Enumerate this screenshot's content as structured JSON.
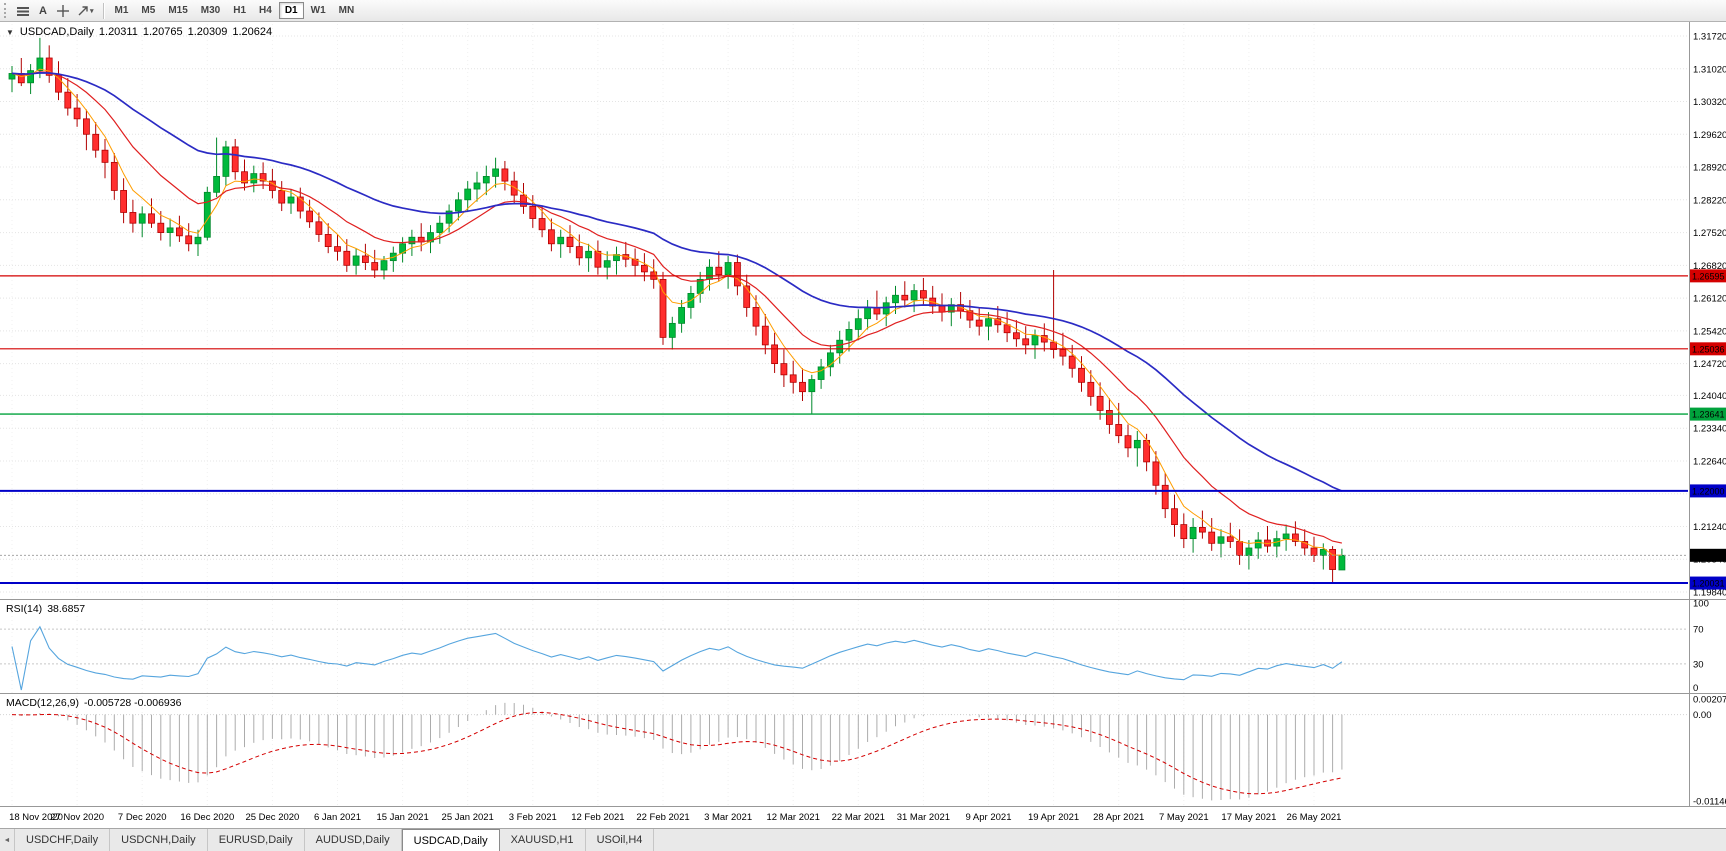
{
  "toolbar": {
    "text_tool_label": "A",
    "timeframes": [
      "M1",
      "M5",
      "M15",
      "M30",
      "H1",
      "H4",
      "D1",
      "W1",
      "MN"
    ],
    "active_timeframe": "D1"
  },
  "icons": {
    "triangle_down": "▼",
    "caret_down": "▾",
    "scroll_left": "◄"
  },
  "colors": {
    "candle_up": "#00B93C",
    "candle_up_border": "#00892A",
    "candle_down": "#FF2E2E",
    "candle_down_border": "#B00000",
    "macd_hist": "#ACACAC",
    "macd_signal": "#D40000",
    "grid": "#E4E4E4"
  },
  "tabs": {
    "items": [
      "USDCHF,Daily",
      "USDCNH,Daily",
      "EURUSD,Daily",
      "AUDUSD,Daily",
      "USDCAD,Daily",
      "XAUUSD,H1",
      "USOil,H4"
    ],
    "active_index": 4
  },
  "chart_data": {
    "type": "candlestick",
    "title": "USDCAD,Daily",
    "current": {
      "open": "1.20311",
      "high": "1.20765",
      "low": "1.20309",
      "close": "1.20624"
    },
    "y_top_price": 1.3172,
    "y_bottom_price": 1.1984,
    "y_axis_labels": [
      "1.31720",
      "1.31020",
      "1.30320",
      "1.29620",
      "1.28920",
      "1.28220",
      "1.27520",
      "1.26820",
      "1.26120",
      "1.25420",
      "1.24720",
      "1.24040",
      "1.23340",
      "1.22640",
      "1.21940",
      "1.21240",
      "1.20540",
      "1.19840"
    ],
    "x_labels": [
      {
        "bar": 0,
        "label": "18 Nov 2020"
      },
      {
        "bar": 7,
        "label": "27 Nov 2020"
      },
      {
        "bar": 14,
        "label": "7 Dec 2020"
      },
      {
        "bar": 21,
        "label": "16 Dec 2020"
      },
      {
        "bar": 28,
        "label": "25 Dec 2020"
      },
      {
        "bar": 35,
        "label": "6 Jan 2021"
      },
      {
        "bar": 42,
        "label": "15 Jan 2021"
      },
      {
        "bar": 49,
        "label": "25 Jan 2021"
      },
      {
        "bar": 56,
        "label": "3 Feb 2021"
      },
      {
        "bar": 63,
        "label": "12 Feb 2021"
      },
      {
        "bar": 70,
        "label": "22 Feb 2021"
      },
      {
        "bar": 77,
        "label": "3 Mar 2021"
      },
      {
        "bar": 84,
        "label": "12 Mar 2021"
      },
      {
        "bar": 91,
        "label": "22 Mar 2021"
      },
      {
        "bar": 98,
        "label": "31 Mar 2021"
      },
      {
        "bar": 105,
        "label": "9 Apr 2021"
      },
      {
        "bar": 112,
        "label": "19 Apr 2021"
      },
      {
        "bar": 119,
        "label": "28 Apr 2021"
      },
      {
        "bar": 126,
        "label": "7 May 2021"
      },
      {
        "bar": 133,
        "label": "17 May 2021"
      },
      {
        "bar": 140,
        "label": "26 May 2021"
      }
    ],
    "hlines": [
      {
        "price": 1.26595,
        "label": "1.26595",
        "color": "#D40000",
        "width": 1.2
      },
      {
        "price": 1.25036,
        "label": "1.25036",
        "color": "#D40000",
        "width": 1.2
      },
      {
        "price": 1.23641,
        "label": "1.23641",
        "color": "#00A23C",
        "width": 1.4
      },
      {
        "price": 1.22,
        "label": "1.22000",
        "color": "#0000C8",
        "width": 2
      },
      {
        "price": 1.20031,
        "label": "1.20031",
        "color": "#0000C8",
        "width": 2
      }
    ],
    "current_price": {
      "value": 1.20624,
      "label": "1.20624",
      "badge_color": "#000000"
    },
    "mas": [
      {
        "period": 5,
        "color": "#FF9E00",
        "width": 1
      },
      {
        "period": 13,
        "color": "#E02020",
        "width": 1.2
      },
      {
        "period": 34,
        "color": "#2B2BC4",
        "width": 1.7
      }
    ],
    "rsi": {
      "label": "RSI(14)",
      "value": "38.6857",
      "period": 14,
      "levels": [
        100,
        70,
        30,
        0
      ],
      "color": "#56A5DE"
    },
    "macd": {
      "label": "MACD(12,26,9)",
      "values": "-0.005728 -0.006936",
      "fast": 12,
      "slow": 26,
      "signal": 9,
      "scale_max": 0.002074,
      "scale_min": -0.011462,
      "max_label": "0.002074",
      "zero_label": "0.00",
      "min_label": "-0.011462"
    },
    "candles": [
      [
        1.308,
        1.3108,
        1.3052,
        1.3092
      ],
      [
        1.3092,
        1.3125,
        1.3065,
        1.3072
      ],
      [
        1.3072,
        1.3112,
        1.3048,
        1.3098
      ],
      [
        1.3098,
        1.3168,
        1.3082,
        1.3125
      ],
      [
        1.3125,
        1.3152,
        1.3072,
        1.3088
      ],
      [
        1.3088,
        1.3118,
        1.3035,
        1.3052
      ],
      [
        1.3052,
        1.3082,
        1.3002,
        1.3018
      ],
      [
        1.3018,
        1.3048,
        1.2978,
        1.2995
      ],
      [
        1.2995,
        1.3015,
        1.2928,
        1.2962
      ],
      [
        1.2962,
        1.2988,
        1.2912,
        1.2928
      ],
      [
        1.2928,
        1.2952,
        1.2868,
        1.2902
      ],
      [
        1.2902,
        1.2922,
        1.2822,
        1.2842
      ],
      [
        1.2842,
        1.2868,
        1.2772,
        1.2795
      ],
      [
        1.2795,
        1.2822,
        1.2752,
        1.2772
      ],
      [
        1.2772,
        1.2808,
        1.2742,
        1.2792
      ],
      [
        1.2792,
        1.2825,
        1.2762,
        1.2772
      ],
      [
        1.2772,
        1.2798,
        1.2735,
        1.2752
      ],
      [
        1.2752,
        1.2782,
        1.2722,
        1.2762
      ],
      [
        1.2762,
        1.2788,
        1.2732,
        1.2745
      ],
      [
        1.2745,
        1.2772,
        1.2712,
        1.2728
      ],
      [
        1.2728,
        1.2758,
        1.2702,
        1.2742
      ],
      [
        1.2742,
        1.285,
        1.2735,
        1.2838
      ],
      [
        1.2838,
        1.2955,
        1.2828,
        1.2872
      ],
      [
        1.2872,
        1.2948,
        1.2852,
        1.2935
      ],
      [
        1.2935,
        1.2952,
        1.2865,
        1.2882
      ],
      [
        1.2882,
        1.2908,
        1.2842,
        1.2858
      ],
      [
        1.2858,
        1.2895,
        1.2838,
        1.2878
      ],
      [
        1.2878,
        1.2902,
        1.2845,
        1.2862
      ],
      [
        1.2862,
        1.2888,
        1.2825,
        1.2842
      ],
      [
        1.2842,
        1.2862,
        1.2798,
        1.2815
      ],
      [
        1.2815,
        1.2845,
        1.2792,
        1.2828
      ],
      [
        1.2828,
        1.2848,
        1.2782,
        1.2798
      ],
      [
        1.2798,
        1.2822,
        1.2762,
        1.2775
      ],
      [
        1.2775,
        1.2795,
        1.2732,
        1.2748
      ],
      [
        1.2748,
        1.2772,
        1.2708,
        1.2722
      ],
      [
        1.2722,
        1.2748,
        1.2692,
        1.2712
      ],
      [
        1.2712,
        1.2738,
        1.2668,
        1.2682
      ],
      [
        1.2682,
        1.2718,
        1.2662,
        1.2702
      ],
      [
        1.2702,
        1.2728,
        1.2672,
        1.2688
      ],
      [
        1.2688,
        1.2715,
        1.2655,
        1.2672
      ],
      [
        1.2672,
        1.2702,
        1.2652,
        1.2692
      ],
      [
        1.2692,
        1.2722,
        1.2668,
        1.2708
      ],
      [
        1.2708,
        1.2742,
        1.2688,
        1.2728
      ],
      [
        1.2728,
        1.2758,
        1.2702,
        1.2742
      ],
      [
        1.2742,
        1.2772,
        1.2712,
        1.2732
      ],
      [
        1.2732,
        1.2768,
        1.2708,
        1.2752
      ],
      [
        1.2752,
        1.2788,
        1.2728,
        1.2772
      ],
      [
        1.2772,
        1.2812,
        1.2752,
        1.2798
      ],
      [
        1.2798,
        1.2838,
        1.2778,
        1.2822
      ],
      [
        1.2822,
        1.2862,
        1.2798,
        1.2845
      ],
      [
        1.2845,
        1.2882,
        1.2818,
        1.2858
      ],
      [
        1.2858,
        1.2895,
        1.2832,
        1.2872
      ],
      [
        1.2872,
        1.2912,
        1.2848,
        1.2888
      ],
      [
        1.2888,
        1.2905,
        1.2842,
        1.2862
      ],
      [
        1.2862,
        1.2882,
        1.2812,
        1.2832
      ],
      [
        1.2832,
        1.2858,
        1.2792,
        1.2808
      ],
      [
        1.2808,
        1.2832,
        1.2762,
        1.2782
      ],
      [
        1.2782,
        1.2808,
        1.2742,
        1.2758
      ],
      [
        1.2758,
        1.2782,
        1.2712,
        1.2728
      ],
      [
        1.2728,
        1.2758,
        1.2698,
        1.2742
      ],
      [
        1.2742,
        1.2768,
        1.2708,
        1.2722
      ],
      [
        1.2722,
        1.2748,
        1.2682,
        1.2698
      ],
      [
        1.2698,
        1.2728,
        1.2668,
        1.2712
      ],
      [
        1.2712,
        1.2735,
        1.2662,
        1.2678
      ],
      [
        1.2678,
        1.2712,
        1.2652,
        1.2692
      ],
      [
        1.2692,
        1.2722,
        1.2662,
        1.2705
      ],
      [
        1.2705,
        1.2732,
        1.2678,
        1.2695
      ],
      [
        1.2695,
        1.2718,
        1.2658,
        1.2682
      ],
      [
        1.2682,
        1.2708,
        1.2648,
        1.2668
      ],
      [
        1.2668,
        1.2695,
        1.2632,
        1.2652
      ],
      [
        1.2652,
        1.2668,
        1.2512,
        1.2528
      ],
      [
        1.2528,
        1.2572,
        1.2502,
        1.2558
      ],
      [
        1.2558,
        1.2608,
        1.2538,
        1.2592
      ],
      [
        1.2592,
        1.2638,
        1.2568,
        1.2622
      ],
      [
        1.2622,
        1.2668,
        1.2602,
        1.2652
      ],
      [
        1.2652,
        1.2695,
        1.2628,
        1.2678
      ],
      [
        1.2678,
        1.2712,
        1.2648,
        1.2662
      ],
      [
        1.2662,
        1.2702,
        1.2632,
        1.2688
      ],
      [
        1.2688,
        1.2705,
        1.2618,
        1.2638
      ],
      [
        1.2638,
        1.2662,
        1.2572,
        1.2592
      ],
      [
        1.2592,
        1.2618,
        1.2532,
        1.2552
      ],
      [
        1.2552,
        1.2578,
        1.2492,
        1.2512
      ],
      [
        1.2512,
        1.2538,
        1.2452,
        1.2472
      ],
      [
        1.2472,
        1.2502,
        1.2422,
        1.2448
      ],
      [
        1.2448,
        1.2478,
        1.2408,
        1.2432
      ],
      [
        1.2432,
        1.2462,
        1.2392,
        1.2412
      ],
      [
        1.2412,
        1.2448,
        1.2365,
        1.2438
      ],
      [
        1.2438,
        1.2482,
        1.2418,
        1.2465
      ],
      [
        1.2465,
        1.2512,
        1.2445,
        1.2495
      ],
      [
        1.2495,
        1.2542,
        1.2472,
        1.2522
      ],
      [
        1.2522,
        1.2562,
        1.2498,
        1.2545
      ],
      [
        1.2545,
        1.2588,
        1.2522,
        1.2568
      ],
      [
        1.2568,
        1.2608,
        1.2545,
        1.2592
      ],
      [
        1.2592,
        1.2628,
        1.2565,
        1.2578
      ],
      [
        1.2578,
        1.2615,
        1.2552,
        1.2602
      ],
      [
        1.2602,
        1.2638,
        1.2578,
        1.2618
      ],
      [
        1.2618,
        1.2648,
        1.2592,
        1.2608
      ],
      [
        1.2608,
        1.2642,
        1.2582,
        1.2628
      ],
      [
        1.2628,
        1.2655,
        1.2598,
        1.2612
      ],
      [
        1.2612,
        1.2638,
        1.2578,
        1.2595
      ],
      [
        1.2595,
        1.2622,
        1.2562,
        1.2582
      ],
      [
        1.2582,
        1.2612,
        1.2552,
        1.2598
      ],
      [
        1.2598,
        1.2625,
        1.2568,
        1.2585
      ],
      [
        1.2585,
        1.2608,
        1.2548,
        1.2565
      ],
      [
        1.2565,
        1.2592,
        1.2532,
        1.2552
      ],
      [
        1.2552,
        1.2582,
        1.2522,
        1.2568
      ],
      [
        1.2568,
        1.2595,
        1.2538,
        1.2555
      ],
      [
        1.2555,
        1.2582,
        1.2518,
        1.2538
      ],
      [
        1.2538,
        1.2565,
        1.2508,
        1.2525
      ],
      [
        1.2525,
        1.2552,
        1.2492,
        1.2512
      ],
      [
        1.2512,
        1.2545,
        1.2482,
        1.2532
      ],
      [
        1.2532,
        1.2558,
        1.2498,
        1.2518
      ],
      [
        1.2518,
        1.2672,
        1.2483,
        1.2502
      ],
      [
        1.2502,
        1.2538,
        1.2468,
        1.2488
      ],
      [
        1.2488,
        1.2512,
        1.2442,
        1.2462
      ],
      [
        1.2462,
        1.2488,
        1.2412,
        1.2432
      ],
      [
        1.2432,
        1.2458,
        1.2382,
        1.2402
      ],
      [
        1.2402,
        1.2432,
        1.2352,
        1.2372
      ],
      [
        1.2372,
        1.2398,
        1.2322,
        1.2342
      ],
      [
        1.2342,
        1.2388,
        1.2302,
        1.2318
      ],
      [
        1.2318,
        1.2342,
        1.2272,
        1.2292
      ],
      [
        1.2292,
        1.2328,
        1.2252,
        1.2308
      ],
      [
        1.2308,
        1.2322,
        1.2242,
        1.2262
      ],
      [
        1.2262,
        1.2285,
        1.2192,
        1.2212
      ],
      [
        1.2212,
        1.2238,
        1.2142,
        1.2162
      ],
      [
        1.2162,
        1.2192,
        1.2102,
        1.2128
      ],
      [
        1.2128,
        1.2152,
        1.2078,
        1.2098
      ],
      [
        1.2098,
        1.2142,
        1.2068,
        1.2122
      ],
      [
        1.2122,
        1.2158,
        1.2098,
        1.2112
      ],
      [
        1.2112,
        1.2142,
        1.2072,
        1.2088
      ],
      [
        1.2088,
        1.2118,
        1.2058,
        1.2102
      ],
      [
        1.2102,
        1.2132,
        1.2078,
        1.2092
      ],
      [
        1.2092,
        1.2118,
        1.2042,
        1.2062
      ],
      [
        1.2062,
        1.2095,
        1.2032,
        1.2078
      ],
      [
        1.2078,
        1.2112,
        1.2055,
        1.2095
      ],
      [
        1.2095,
        1.2125,
        1.2068,
        1.2082
      ],
      [
        1.2082,
        1.2115,
        1.2058,
        1.2098
      ],
      [
        1.2098,
        1.2128,
        1.2072,
        1.2108
      ],
      [
        1.2108,
        1.2135,
        1.2082,
        1.2092
      ],
      [
        1.2092,
        1.2118,
        1.2062,
        1.2078
      ],
      [
        1.2078,
        1.2102,
        1.2048,
        1.2062
      ],
      [
        1.2062,
        1.2088,
        1.2032,
        1.2075
      ],
      [
        1.2075,
        1.2082,
        1.2003,
        1.2032
      ],
      [
        1.20311,
        1.20765,
        1.20309,
        1.20624
      ]
    ]
  }
}
